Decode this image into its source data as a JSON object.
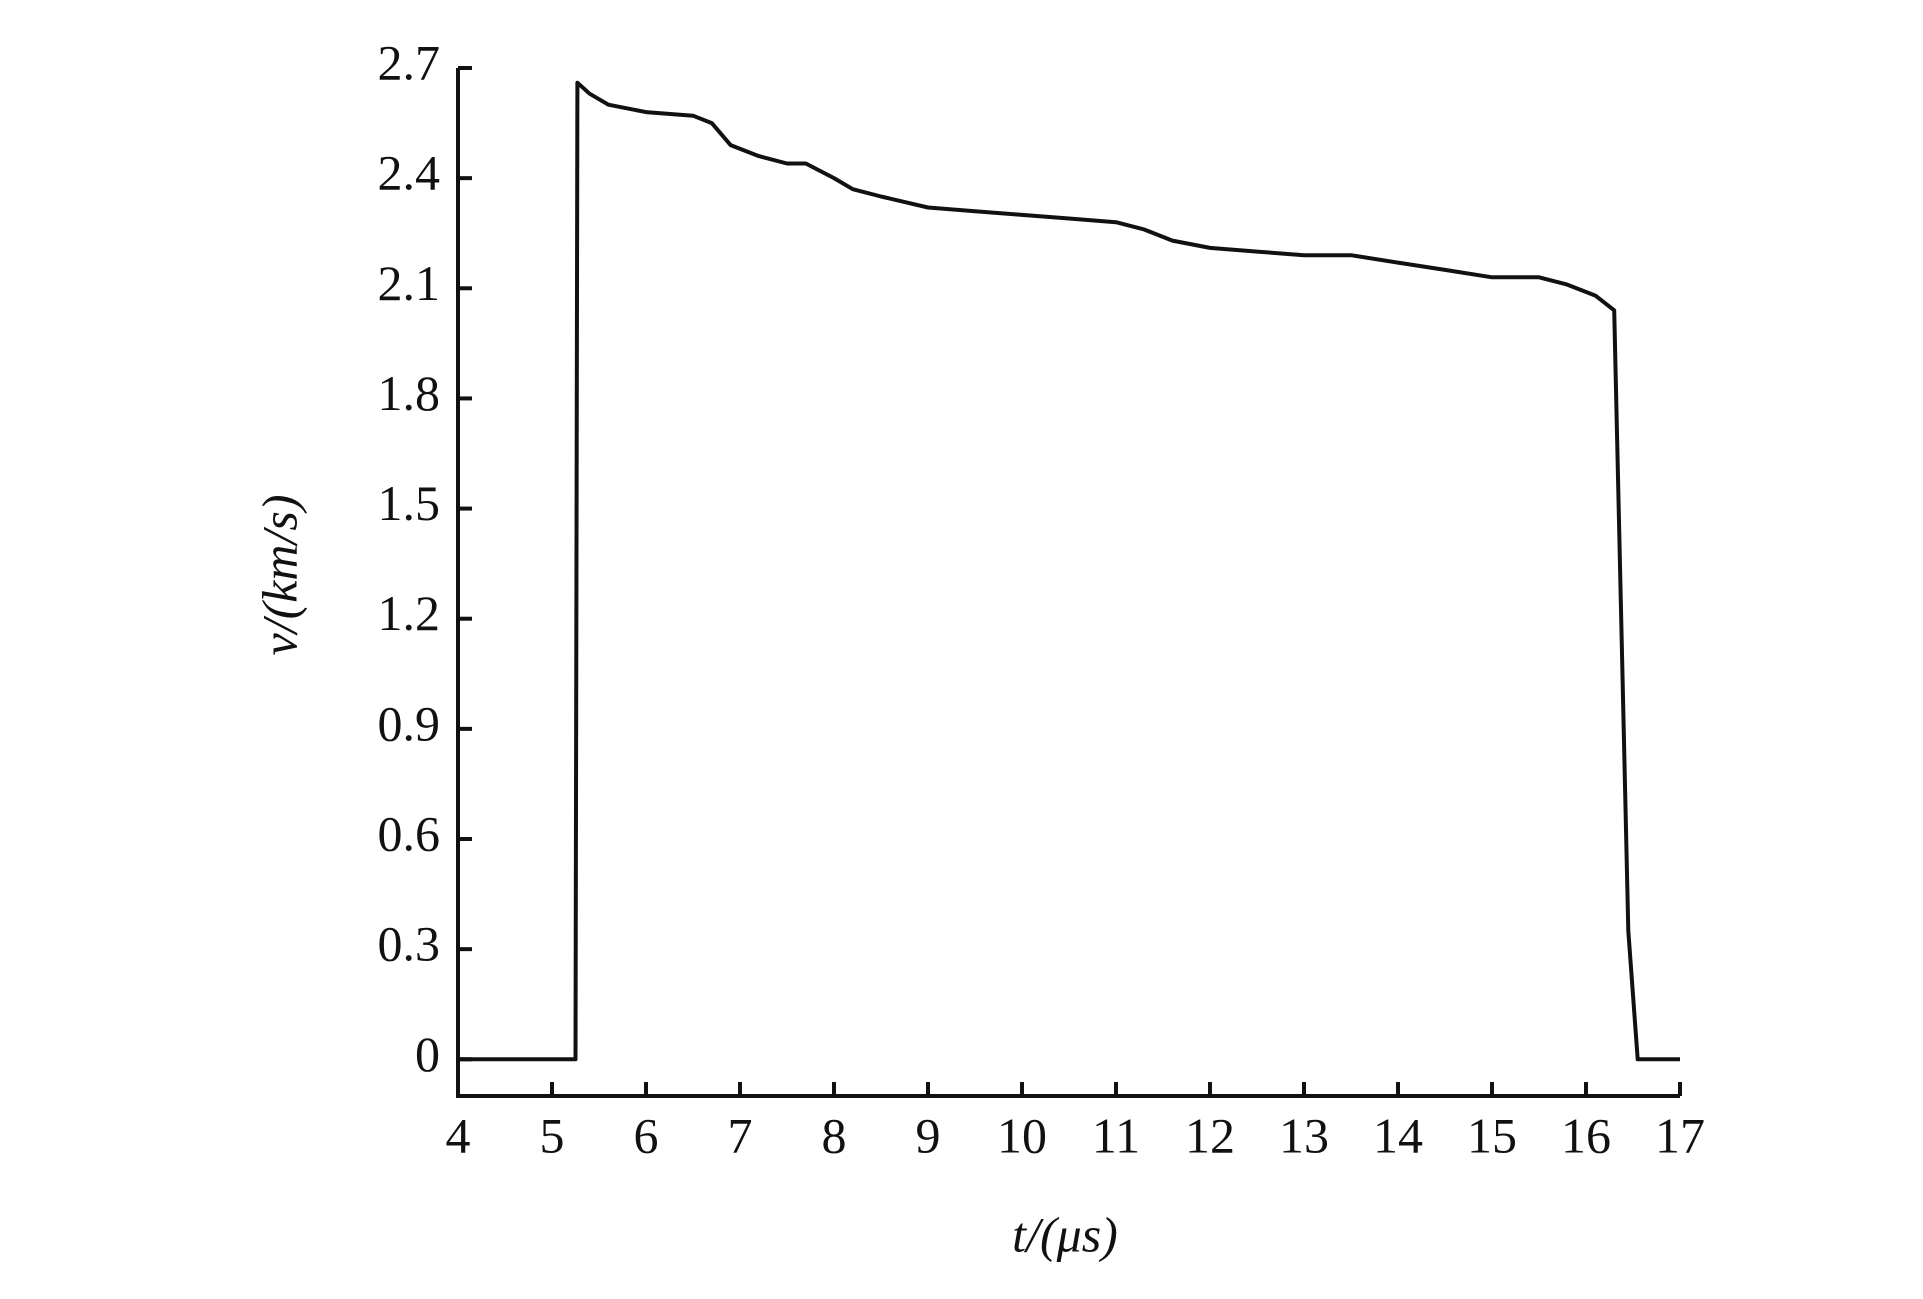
{
  "chart_data": {
    "type": "line",
    "x_label": "t/(μs)",
    "y_label": "v/(km/s)",
    "xlim": [
      4,
      17
    ],
    "xticks": [
      4,
      5,
      6,
      7,
      8,
      9,
      10,
      11,
      12,
      13,
      14,
      15,
      16,
      17
    ],
    "ylim": [
      -0.1,
      2.7
    ],
    "yticks": [
      0,
      0.3,
      0.6,
      0.9,
      1.2,
      1.5,
      1.8,
      2.1,
      2.4,
      2.7
    ],
    "series": [
      {
        "color": "#111111",
        "x": [
          4,
          5.25,
          5.27,
          5.4,
          5.6,
          6,
          6.5,
          6.7,
          6.9,
          7.2,
          7.5,
          7.7,
          8,
          8.2,
          8.5,
          9,
          9.5,
          10,
          10.5,
          11,
          11.3,
          11.6,
          12,
          12.5,
          13,
          13.5,
          14,
          14.5,
          15,
          15.5,
          15.8,
          16.1,
          16.3,
          16.45,
          16.55,
          17
        ],
        "values": [
          0,
          0,
          2.66,
          2.63,
          2.6,
          2.58,
          2.57,
          2.55,
          2.49,
          2.46,
          2.44,
          2.44,
          2.4,
          2.37,
          2.35,
          2.32,
          2.31,
          2.3,
          2.29,
          2.28,
          2.26,
          2.23,
          2.21,
          2.2,
          2.19,
          2.19,
          2.17,
          2.15,
          2.13,
          2.13,
          2.11,
          2.08,
          2.04,
          0.35,
          0,
          0
        ]
      }
    ]
  }
}
